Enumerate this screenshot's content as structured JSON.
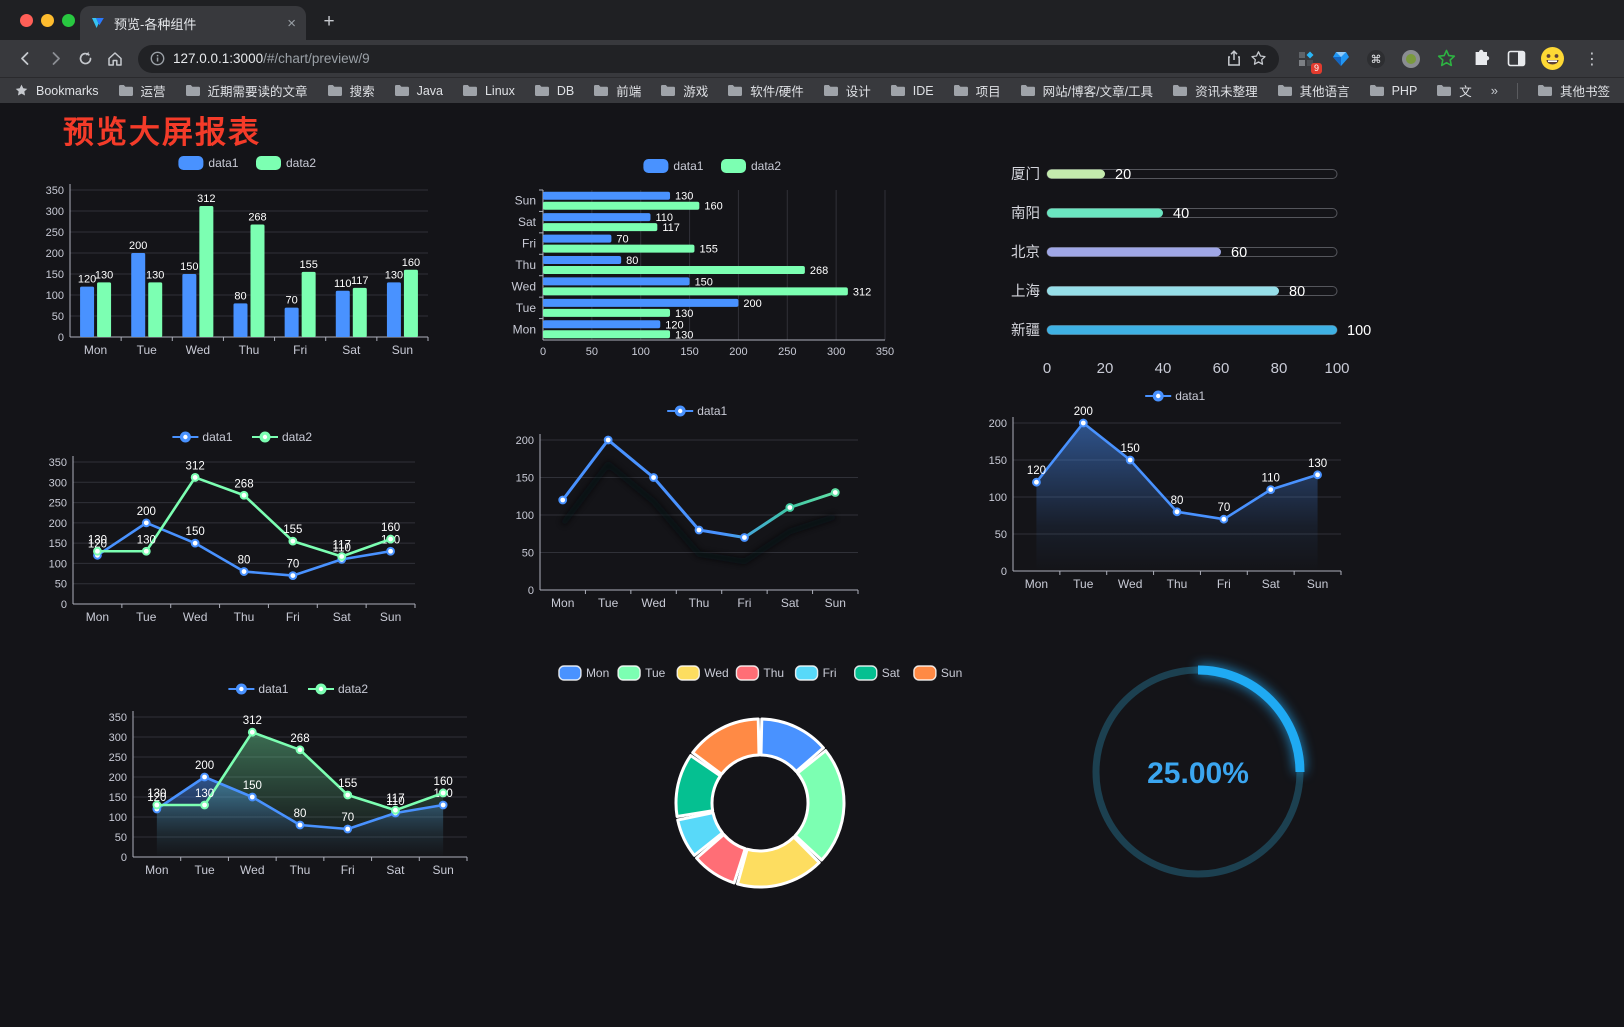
{
  "browser": {
    "tab_title": "预览-各种组件",
    "tab_close_glyph": "×",
    "new_tab_glyph": "+",
    "url_host": "127.0.0.1:3000",
    "url_path": "/#/chart/preview/9",
    "extension_badge": "9",
    "menu_glyph": "⋮",
    "bookmarks": {
      "label": "Bookmarks",
      "folders": [
        "运营",
        "近期需要读的文章",
        "搜索",
        "Java",
        "Linux",
        "DB",
        "前端",
        "游戏",
        "软件/硬件",
        "设计",
        "IDE",
        "项目",
        "网站/博客/文章/工具",
        "资讯未整理",
        "其他语言",
        "PHP",
        "文件服务器"
      ],
      "overflow_chevron": "»",
      "other_bookmarks": "其他书签"
    }
  },
  "page": {
    "title": "预览大屏报表",
    "title_color": "#f43b29",
    "background": "#141418"
  },
  "chart_data": [
    {
      "id": "grouped-bar",
      "type": "bar",
      "legend_position": "top",
      "grid": true,
      "categories": [
        "Mon",
        "Tue",
        "Wed",
        "Thu",
        "Fri",
        "Sat",
        "Sun"
      ],
      "series": [
        {
          "name": "data1",
          "color": "#4992ff",
          "values": [
            120,
            200,
            150,
            80,
            70,
            110,
            130
          ]
        },
        {
          "name": "data2",
          "color": "#7cffb2",
          "values": [
            130,
            130,
            312,
            268,
            155,
            117,
            160
          ]
        }
      ],
      "ylim": [
        0,
        350
      ],
      "ytick": 50
    },
    {
      "id": "horizontal-bar",
      "type": "bar",
      "orientation": "horizontal",
      "legend_position": "top",
      "grid": true,
      "categories": [
        "Mon",
        "Tue",
        "Wed",
        "Thu",
        "Fri",
        "Sat",
        "Sun"
      ],
      "series": [
        {
          "name": "data1",
          "color": "#4992ff",
          "values": [
            120,
            200,
            150,
            80,
            70,
            110,
            130
          ]
        },
        {
          "name": "data2",
          "color": "#7cffb2",
          "values": [
            130,
            130,
            312,
            268,
            155,
            117,
            160
          ]
        }
      ],
      "xlim": [
        0,
        350
      ],
      "xtick": 50
    },
    {
      "id": "progress-bars",
      "type": "bar",
      "subtype": "progress",
      "items": [
        {
          "label": "厦门",
          "value": 20,
          "color": "#c4ebad"
        },
        {
          "label": "南阳",
          "value": 40,
          "color": "#6be6c1"
        },
        {
          "label": "北京",
          "value": 60,
          "color": "#a0a7e6"
        },
        {
          "label": "上海",
          "value": 80,
          "color": "#96dee8"
        },
        {
          "label": "新疆",
          "value": 100,
          "color": "#3fb1e3"
        }
      ],
      "xlim": [
        0,
        100
      ],
      "xticks": [
        0,
        20,
        40,
        60,
        80,
        100
      ]
    },
    {
      "id": "line-two-series",
      "type": "line",
      "legend_position": "top",
      "grid": true,
      "point_labels": true,
      "categories": [
        "Mon",
        "Tue",
        "Wed",
        "Thu",
        "Fri",
        "Sat",
        "Sun"
      ],
      "series": [
        {
          "name": "data1",
          "color": "#4992ff",
          "values": [
            120,
            200,
            150,
            80,
            70,
            110,
            130
          ]
        },
        {
          "name": "data2",
          "color": "#7cffb2",
          "values": [
            130,
            130,
            312,
            268,
            155,
            117,
            160
          ]
        }
      ],
      "ylim": [
        0,
        350
      ],
      "ytick": 50
    },
    {
      "id": "line-gradient",
      "type": "line",
      "legend_position": "top",
      "grid": true,
      "point_labels": false,
      "effects": [
        "gradient-stroke",
        "drop-shadow"
      ],
      "categories": [
        "Mon",
        "Tue",
        "Wed",
        "Thu",
        "Fri",
        "Sat",
        "Sun"
      ],
      "series": [
        {
          "name": "data1",
          "color": "#4992ff",
          "color_end": "#62e0a5",
          "values": [
            120,
            200,
            150,
            80,
            70,
            110,
            130
          ]
        }
      ],
      "ylim": [
        0,
        200
      ],
      "ytick": 50
    },
    {
      "id": "area-single",
      "type": "area",
      "legend_position": "top",
      "grid": true,
      "point_labels": true,
      "categories": [
        "Mon",
        "Tue",
        "Wed",
        "Thu",
        "Fri",
        "Sat",
        "Sun"
      ],
      "series": [
        {
          "name": "data1",
          "color": "#4992ff",
          "area": true,
          "values": [
            120,
            200,
            150,
            80,
            70,
            110,
            130
          ]
        }
      ],
      "ylim": [
        0,
        200
      ],
      "ytick": 50
    },
    {
      "id": "area-two-series",
      "type": "area",
      "legend_position": "top",
      "grid": true,
      "point_labels": true,
      "categories": [
        "Mon",
        "Tue",
        "Wed",
        "Thu",
        "Fri",
        "Sat",
        "Sun"
      ],
      "series": [
        {
          "name": "data1",
          "color": "#4992ff",
          "area": true,
          "values": [
            120,
            200,
            150,
            80,
            70,
            110,
            130
          ]
        },
        {
          "name": "data2",
          "color": "#7cffb2",
          "area": true,
          "values": [
            130,
            130,
            312,
            268,
            155,
            117,
            160
          ]
        }
      ],
      "ylim": [
        0,
        350
      ],
      "ytick": 50
    },
    {
      "id": "donut",
      "type": "pie",
      "legend_position": "top",
      "inner_radius_ratio": 0.57,
      "categories": [
        "Mon",
        "Tue",
        "Wed",
        "Thu",
        "Fri",
        "Sat",
        "Sun"
      ],
      "values": [
        120,
        200,
        150,
        80,
        70,
        110,
        130
      ],
      "colors": [
        "#4992ff",
        "#7cffb2",
        "#fddd60",
        "#ff6e76",
        "#58d9f9",
        "#05c091",
        "#ff8a45"
      ]
    },
    {
      "id": "gauge",
      "type": "gauge",
      "value": 25,
      "label": "25.00%",
      "arc_color": "#1faaf3",
      "track_color": "#1c4050",
      "text_color": "#3ba6f0"
    }
  ]
}
